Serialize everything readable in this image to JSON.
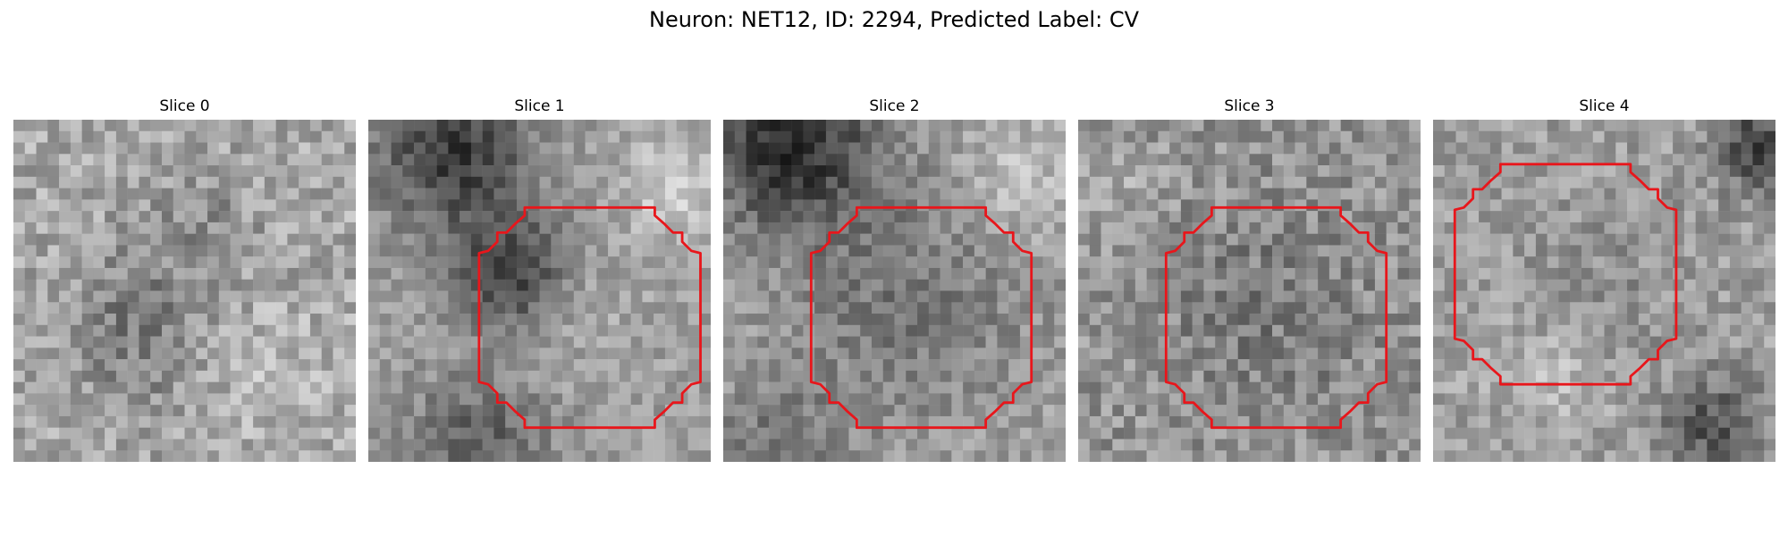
{
  "figure": {
    "title": "Neuron: NET12, ID: 2294, Predicted Label: CV"
  },
  "colors": {
    "background": "#ffffff",
    "contour": "#e8161b",
    "colormap": "grayscale"
  },
  "panels": [
    {
      "title": "Slice 0",
      "has_contour": false,
      "center_tone": "uniform",
      "dark_region": "none"
    },
    {
      "title": "Slice 1",
      "has_contour": true,
      "center_tone": "medium",
      "dark_region": "upper-left and left edge"
    },
    {
      "title": "Slice 2",
      "has_contour": true,
      "center_tone": "medium-light",
      "dark_region": "top-left and ring"
    },
    {
      "title": "Slice 3",
      "has_contour": true,
      "center_tone": "medium",
      "dark_region": "scattered"
    },
    {
      "title": "Slice 4",
      "has_contour": true,
      "center_tone": "medium-light",
      "dark_region": "bottom-right"
    }
  ]
}
